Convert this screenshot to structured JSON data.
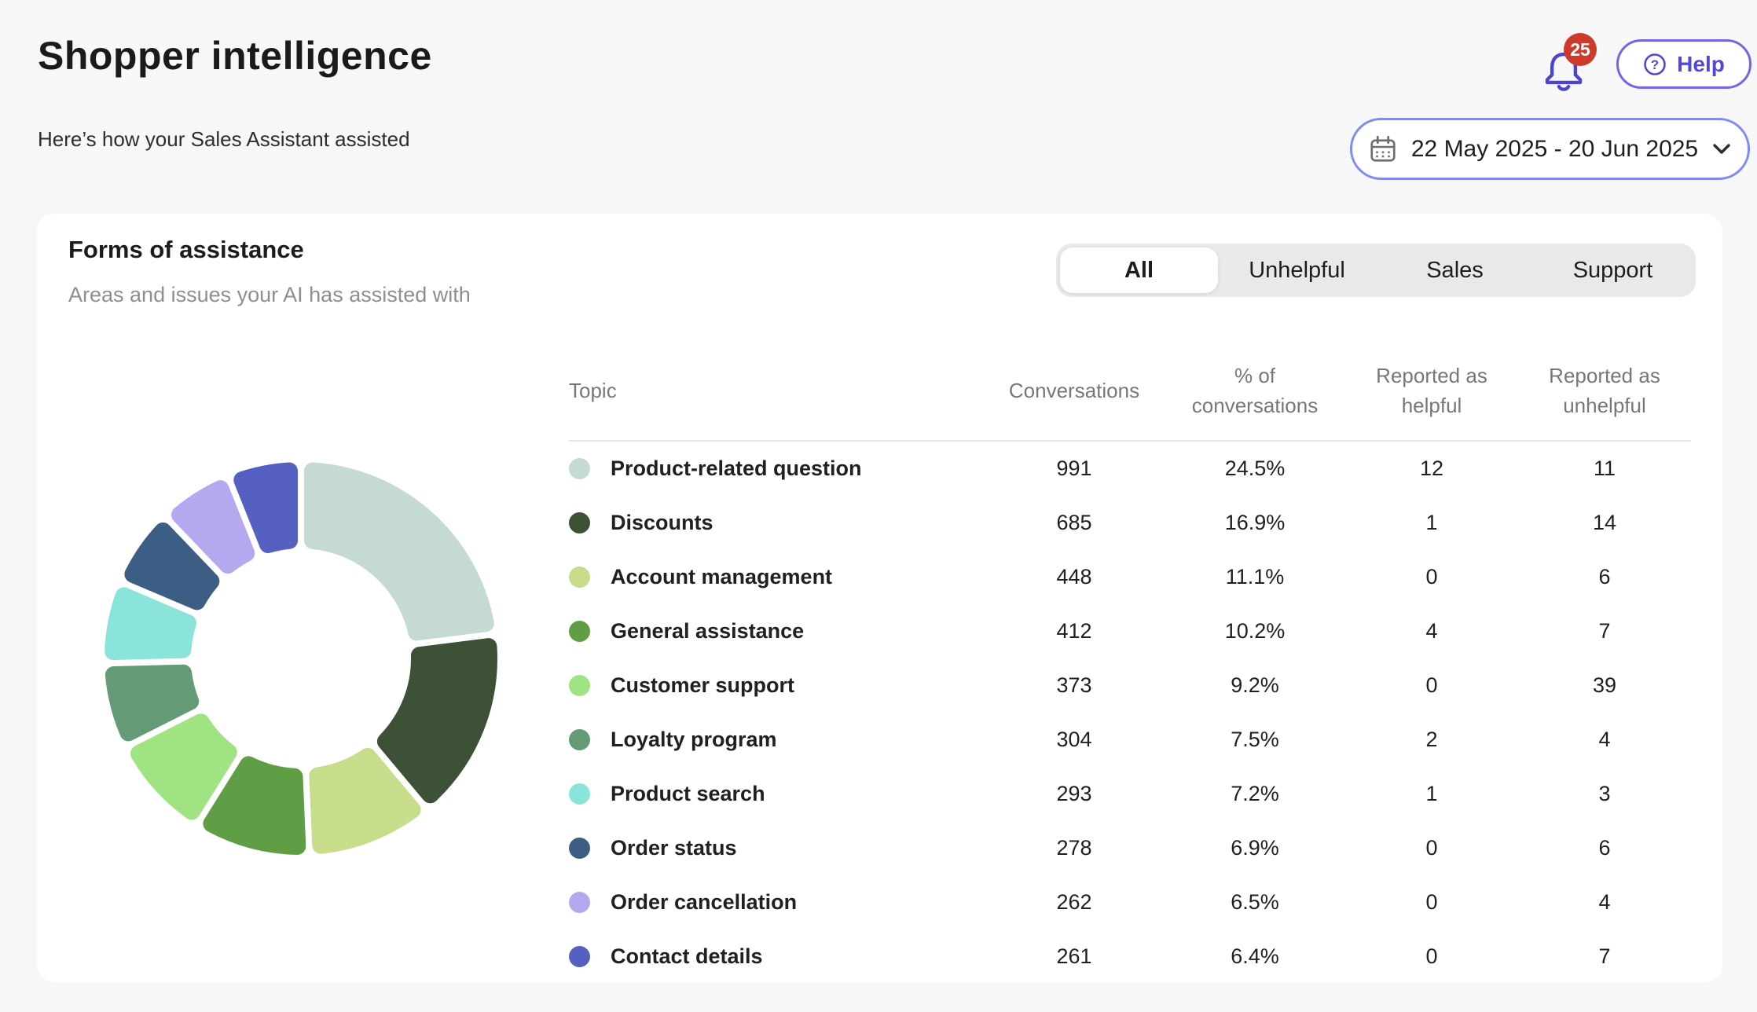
{
  "page": {
    "title": "Shopper intelligence",
    "subtitle": "Here’s how your Sales Assistant assisted"
  },
  "header": {
    "notifications_count": "25",
    "help_label": "Help",
    "badge_color": "#cd3a2b",
    "accent_color": "#5348d2",
    "date_border_color": "#7e8cf2"
  },
  "date_picker": {
    "value": "22 May 2025 - 20 Jun 2025"
  },
  "card": {
    "title": "Forms of assistance",
    "subtitle": "Areas and issues your AI has assisted with",
    "tabs": [
      {
        "label": "All",
        "active": true
      },
      {
        "label": "Unhelpful",
        "active": false
      },
      {
        "label": "Sales",
        "active": false
      },
      {
        "label": "Support",
        "active": false
      }
    ],
    "table": {
      "columns": [
        "Topic",
        "Conversations",
        "% of\nconversations",
        "Reported as\nhelpful",
        "Reported as\nunhelpful"
      ]
    }
  },
  "chart_data": {
    "type": "pie",
    "subtype": "donut",
    "title": "Forms of assistance",
    "legend_position": "table-right",
    "start_angle_deg": 0,
    "direction": "clockwise",
    "inner_radius_ratio": 0.56,
    "categories": [
      "Product-related question",
      "Discounts",
      "Account management",
      "General assistance",
      "Customer support",
      "Loyalty program",
      "Product search",
      "Order status",
      "Order cancellation",
      "Contact details"
    ],
    "colors": [
      "#c5dad0",
      "#3d5136",
      "#c7dd8b",
      "#5f9e45",
      "#a0e383",
      "#649b76",
      "#8be4da",
      "#3d5e84",
      "#b5a8ee",
      "#5560c0"
    ],
    "series": [
      {
        "name": "Conversations",
        "values": [
          991,
          685,
          448,
          412,
          373,
          304,
          293,
          278,
          262,
          261
        ]
      },
      {
        "name": "% of conversations",
        "values": [
          24.5,
          16.9,
          11.1,
          10.2,
          9.2,
          7.5,
          7.2,
          6.9,
          6.5,
          6.4
        ]
      },
      {
        "name": "Reported as helpful",
        "values": [
          12,
          1,
          0,
          4,
          0,
          2,
          1,
          0,
          0,
          0
        ]
      },
      {
        "name": "Reported as unhelpful",
        "values": [
          11,
          14,
          6,
          7,
          39,
          4,
          3,
          6,
          4,
          7
        ]
      }
    ]
  }
}
